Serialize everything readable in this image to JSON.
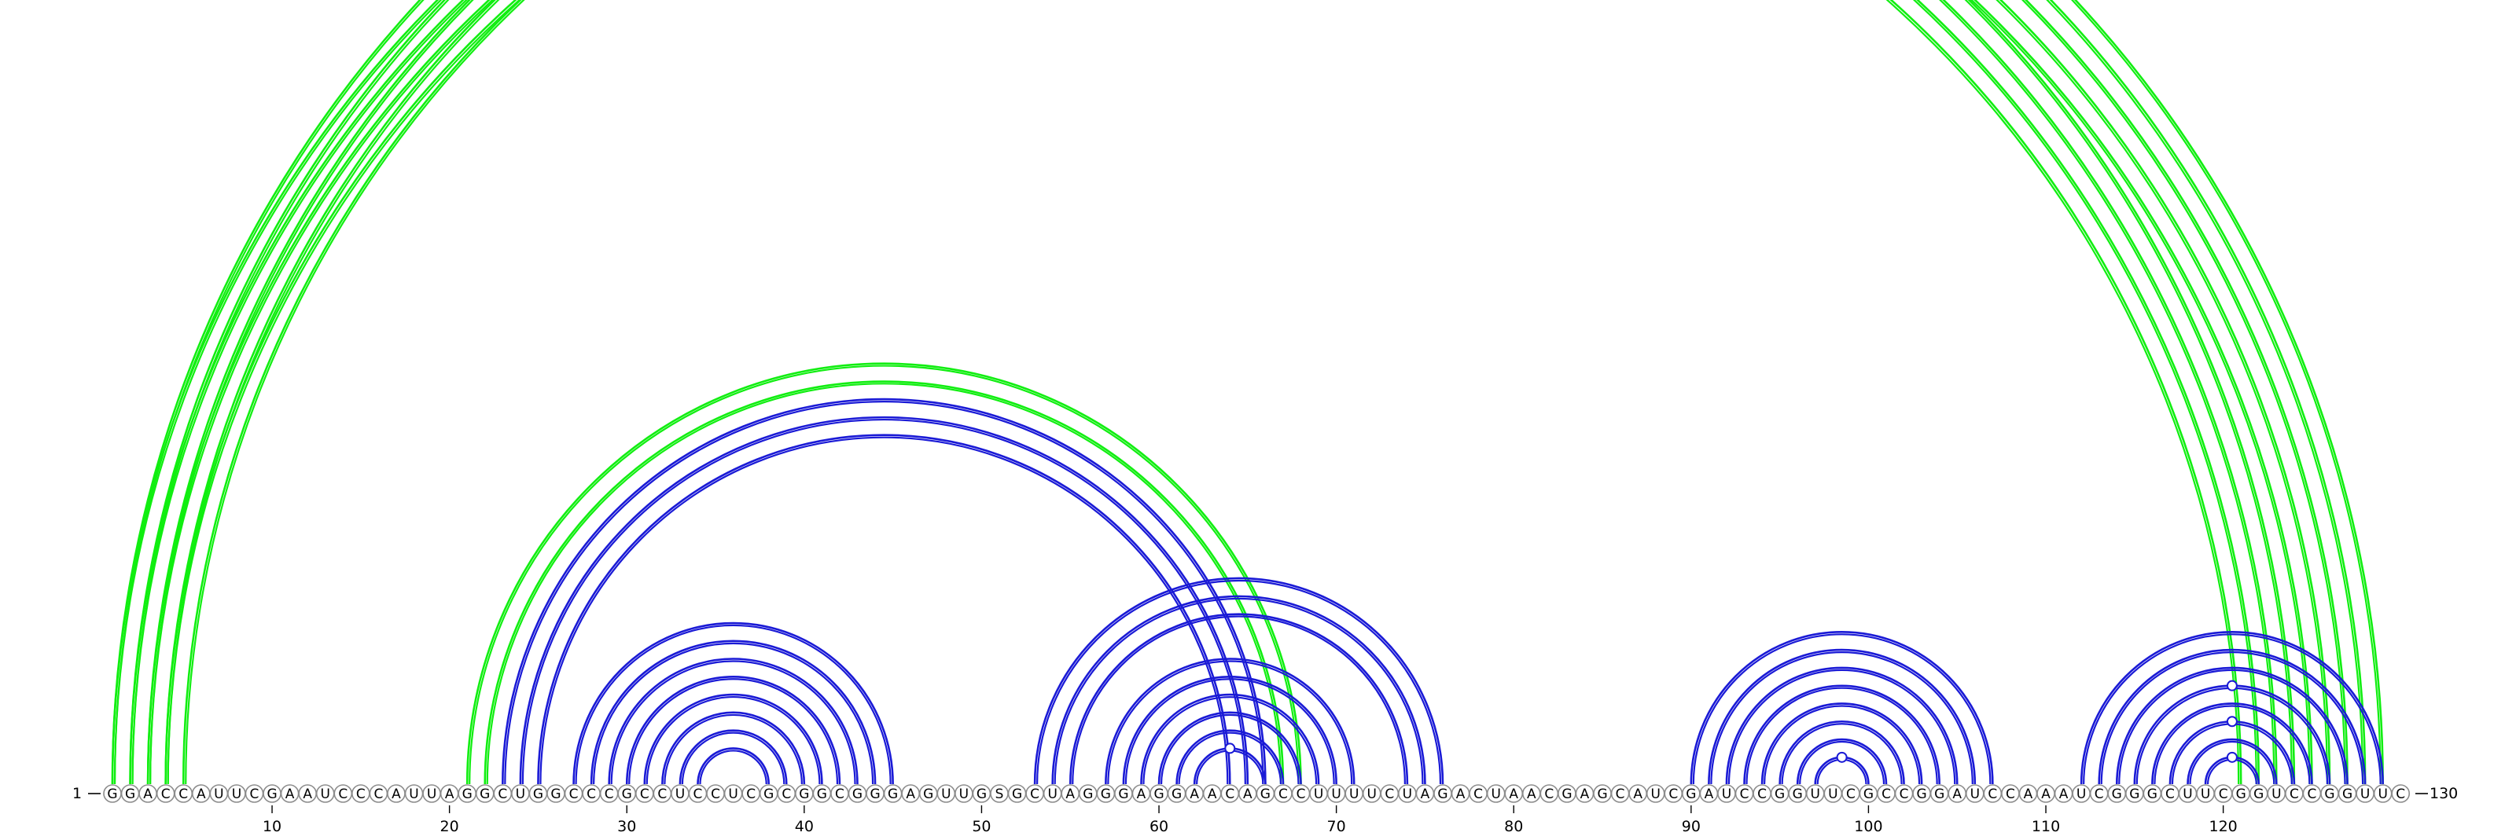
{
  "sequence": "GGACCAUUCGAAUCCCAUUAGGCUGGCCCGCCUCCUCGCGGCGGGAGUUGSGCUAGGGAGGAACAGCCUUUUCUAGACUAACGAGCAUCGAUCCGGUUCGCCGGAUCCAAAUCGGGCUUCGGUCCGGUUC",
  "start_label": "1",
  "end_label": "130",
  "ticks": [
    10,
    20,
    30,
    40,
    50,
    60,
    70,
    80,
    90,
    100,
    110,
    120
  ],
  "colors": {
    "green": "#11ee11",
    "blue": "#1a1ad6"
  },
  "chart_data": {
    "type": "arc",
    "length": 130,
    "arc_groups": [
      {
        "color": "green",
        "side": "top",
        "pairs": [
          [
            1,
            129
          ],
          [
            2,
            128
          ],
          [
            3,
            127
          ],
          [
            4,
            126
          ],
          [
            5,
            125
          ]
        ]
      },
      {
        "color": "green",
        "side": "top",
        "pairs": [
          [
            1,
            124
          ],
          [
            2,
            123
          ],
          [
            3,
            122
          ],
          [
            4,
            121
          ]
        ]
      },
      {
        "color": "green",
        "side": "top",
        "pairs": [
          [
            21,
            68
          ],
          [
            22,
            67
          ]
        ]
      },
      {
        "color": "blue",
        "side": "top",
        "pairs": [
          [
            23,
            66
          ],
          [
            24,
            65
          ],
          [
            25,
            64
          ]
        ]
      },
      {
        "color": "blue",
        "side": "top",
        "pairs": [
          [
            27,
            45
          ],
          [
            28,
            44
          ],
          [
            29,
            43
          ],
          [
            30,
            42
          ],
          [
            31,
            41
          ],
          [
            32,
            40
          ],
          [
            33,
            39
          ],
          [
            34,
            38
          ]
        ]
      },
      {
        "color": "blue",
        "side": "top",
        "pairs": [
          [
            53,
            76
          ],
          [
            54,
            75
          ],
          [
            55,
            74
          ],
          [
            57,
            71
          ],
          [
            58,
            70
          ],
          [
            59,
            69
          ],
          [
            60,
            68
          ],
          [
            61,
            67
          ],
          [
            62,
            66
          ]
        ]
      },
      {
        "color": "blue",
        "side": "top",
        "pairs": [
          [
            90,
            107
          ],
          [
            91,
            106
          ],
          [
            92,
            105
          ],
          [
            93,
            104
          ],
          [
            94,
            103
          ],
          [
            95,
            102
          ],
          [
            96,
            101
          ],
          [
            97,
            100
          ]
        ]
      },
      {
        "color": "blue",
        "side": "top",
        "pairs": [
          [
            112,
            129
          ],
          [
            113,
            128
          ],
          [
            114,
            127
          ],
          [
            115,
            126
          ],
          [
            116,
            125
          ],
          [
            117,
            124
          ],
          [
            118,
            123
          ],
          [
            119,
            122
          ]
        ]
      }
    ],
    "markers": [
      {
        "color": "green",
        "pair": [
          3,
          127
        ]
      },
      {
        "color": "blue",
        "pair": [
          62,
          66
        ]
      },
      {
        "color": "blue",
        "pair": [
          97,
          100
        ]
      },
      {
        "color": "blue",
        "pair": [
          115,
          126
        ]
      },
      {
        "color": "blue",
        "pair": [
          117,
          124
        ]
      },
      {
        "color": "blue",
        "pair": [
          119,
          122
        ]
      }
    ]
  }
}
